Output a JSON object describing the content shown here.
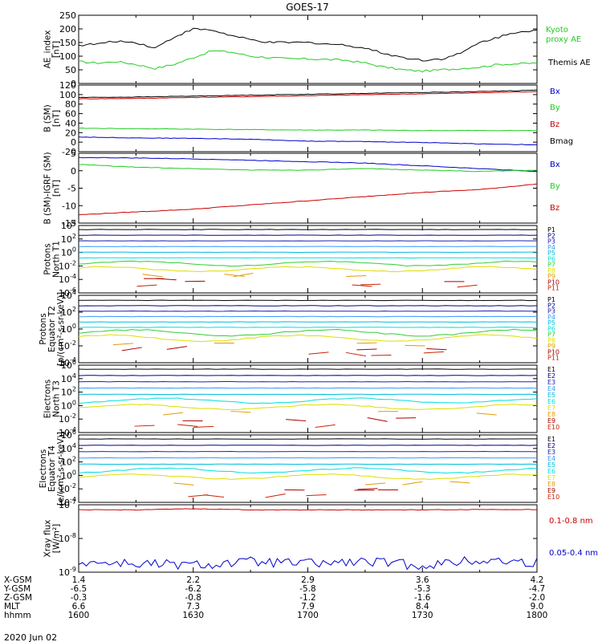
{
  "title": "GOES-17",
  "date": "2020 Jun 02",
  "colors": {
    "black": "#000000",
    "blue": "#0000cc",
    "green": "#22cc22",
    "red": "#cc0000",
    "navy": "#000080",
    "darkblue": "#2020b0",
    "azure": "#3399ff",
    "cyan": "#00bbdd",
    "aqua": "#00dddd",
    "lime": "#33cc33",
    "yellow": "#dddd00",
    "orange": "#e39a00",
    "darkred": "#aa0000",
    "crimson": "#cc2200"
  },
  "x_ticks": [
    "1600",
    "1630",
    "1700",
    "1730",
    "1800"
  ],
  "ephemeris": {
    "labels": [
      "X-GSM",
      "Y-GSM",
      "Z-GSM",
      "MLT",
      "hhmm"
    ],
    "rows": [
      [
        "1.4",
        "2.2",
        "2.9",
        "3.6",
        "4.2"
      ],
      [
        "-6.5",
        "-6.2",
        "-5.8",
        "-5.3",
        "-4.7"
      ],
      [
        "-0.3",
        "-0.8",
        "-1.2",
        "-1.6",
        "-2.0"
      ],
      [
        "6.6",
        "7.3",
        "7.9",
        "8.4",
        "9.0"
      ],
      [
        "1600",
        "1630",
        "1700",
        "1730",
        "1800"
      ]
    ]
  },
  "chart_data": [
    {
      "id": "ae",
      "type": "line",
      "ylabel": [
        "AE_index",
        "[nT]"
      ],
      "ylim": [
        0,
        250
      ],
      "yticks": [
        "0",
        "50",
        "100",
        "150",
        "200",
        "250"
      ],
      "x": [
        1600,
        1605,
        1610,
        1615,
        1620,
        1625,
        1630,
        1635,
        1640,
        1645,
        1650,
        1655,
        1700,
        1705,
        1710,
        1715,
        1720,
        1725,
        1730,
        1735,
        1740,
        1745,
        1750,
        1755,
        1800
      ],
      "series": [
        {
          "name": "Kyoto proxy AE",
          "color": "green",
          "values": [
            null,
            null,
            null,
            null,
            null,
            null,
            null,
            null,
            null,
            null,
            null,
            null,
            null,
            null,
            null,
            null,
            null,
            null,
            null,
            null,
            null,
            null,
            null,
            null,
            null
          ]
        },
        {
          "name": "Themis AE",
          "color": "black",
          "values": [
            140,
            145,
            155,
            150,
            130,
            170,
            200,
            195,
            175,
            160,
            150,
            150,
            150,
            145,
            140,
            130,
            110,
            95,
            85,
            90,
            110,
            150,
            170,
            190,
            195
          ]
        },
        {
          "name": "",
          "color": "green",
          "values": [
            80,
            75,
            80,
            70,
            55,
            70,
            95,
            120,
            115,
            100,
            95,
            90,
            90,
            88,
            85,
            75,
            60,
            50,
            45,
            50,
            55,
            60,
            70,
            72,
            75
          ]
        }
      ]
    },
    {
      "id": "bsm",
      "type": "line",
      "ylabel": [
        "B (SM)",
        "[nT]"
      ],
      "ylim": [
        -25,
        120
      ],
      "yticks": [
        "-20",
        "0",
        "20",
        "40",
        "60",
        "80",
        "100",
        "120"
      ],
      "series": [
        {
          "name": "Bx",
          "color": "blue",
          "values": [
            7,
            5,
            4,
            2,
            -2,
            -3,
            -5,
            -8,
            -10
          ]
        },
        {
          "name": "By",
          "color": "green",
          "values": [
            26,
            25,
            24,
            23,
            22,
            22,
            21,
            21,
            21
          ]
        },
        {
          "name": "Bz",
          "color": "red",
          "values": [
            90,
            91,
            93,
            95,
            97,
            99,
            101,
            103,
            106
          ]
        },
        {
          "name": "Bmag",
          "color": "black",
          "values": [
            93,
            94,
            96,
            98,
            100,
            102,
            104,
            106,
            109
          ]
        }
      ]
    },
    {
      "id": "bigrf",
      "type": "line",
      "ylabel": [
        "B (SM)-IGRF (SM)",
        "[nT]"
      ],
      "ylim": [
        -16,
        9
      ],
      "yticks": [
        "-15",
        "-10",
        "-5",
        "0",
        "5"
      ],
      "series": [
        {
          "name": "Bx",
          "color": "blue",
          "values": [
            7.5,
            7.3,
            7,
            6.5,
            6,
            5.5,
            4.5,
            3.5,
            2.5
          ]
        },
        {
          "name": "By",
          "color": "green",
          "values": [
            5,
            4,
            3.5,
            3,
            3,
            3.5,
            3,
            2.5,
            3
          ]
        },
        {
          "name": "Bz",
          "color": "red",
          "values": [
            -13,
            -12,
            -11,
            -9.5,
            -8,
            -6.5,
            -5,
            -4,
            -2
          ]
        }
      ]
    },
    {
      "id": "prot_t1",
      "type": "line",
      "log": true,
      "ylabel": [
        "Protons",
        "North T1"
      ],
      "ylim": [
        -6,
        4
      ],
      "yticks": [
        "10^-6",
        "10^-4",
        "10^-2",
        "10^0",
        "10^2",
        "10^4"
      ],
      "channels": [
        "P1",
        "P2",
        "P3",
        "P4",
        "P5",
        "P6",
        "P7",
        "P8",
        "P9",
        "P10",
        "P11"
      ]
    },
    {
      "id": "prot_t2",
      "type": "line",
      "log": true,
      "ylabel": [
        "Protons",
        "Equator T2",
        "[p/(cm²-s-sr-keV)]"
      ],
      "ylim": [
        -4,
        4
      ],
      "yticks": [
        "10^-4",
        "10^-2",
        "10^0",
        "10^2",
        "10^4"
      ],
      "channels": [
        "P1",
        "P2",
        "P3",
        "P4",
        "P5",
        "P6",
        "P7",
        "P8",
        "P9",
        "P10",
        "P11"
      ]
    },
    {
      "id": "elec_t3",
      "type": "line",
      "log": true,
      "ylabel": [
        "Electrons",
        "North T3"
      ],
      "ylim": [
        -4,
        6
      ],
      "yticks": [
        "10^-4",
        "10^-2",
        "10^0",
        "10^2",
        "10^4",
        "10^6"
      ],
      "channels": [
        "E1",
        "E2",
        "E3",
        "E4",
        "E5",
        "E6",
        "E7",
        "E8",
        "E9",
        "E10"
      ]
    },
    {
      "id": "elec_t4",
      "type": "line",
      "log": true,
      "ylabel": [
        "Electrons",
        "Equator T4",
        "[e/(cm²-s-sr-keV)]"
      ],
      "ylim": [
        -4,
        6
      ],
      "yticks": [
        "10^-4",
        "10^-2",
        "10^0",
        "10^2",
        "10^4",
        "10^6"
      ],
      "channels": [
        "E1",
        "E2",
        "E3",
        "E4",
        "E5",
        "E6",
        "E7",
        "E8",
        "E9",
        "E10"
      ]
    },
    {
      "id": "xray",
      "type": "line",
      "log": true,
      "ylabel": [
        "Xray flux",
        "[W/m²]"
      ],
      "ylim": [
        -9,
        -7
      ],
      "yticks": [
        "10^-9",
        "10^-8",
        "10^-7"
      ],
      "series": [
        {
          "name": "0.1-0.8 nm",
          "color": "red",
          "values": [
            -7.15,
            -7.15,
            -7.12,
            -7.15,
            -7.15,
            -7.15,
            -7.15,
            -7.14,
            -7.14
          ]
        },
        {
          "name": "0.05-0.4 nm",
          "color": "blue",
          "values": [
            -8.7,
            -8.75,
            -8.8,
            -8.7,
            -8.75,
            -8.7,
            -8.8,
            -8.65,
            -8.72
          ]
        }
      ]
    }
  ]
}
